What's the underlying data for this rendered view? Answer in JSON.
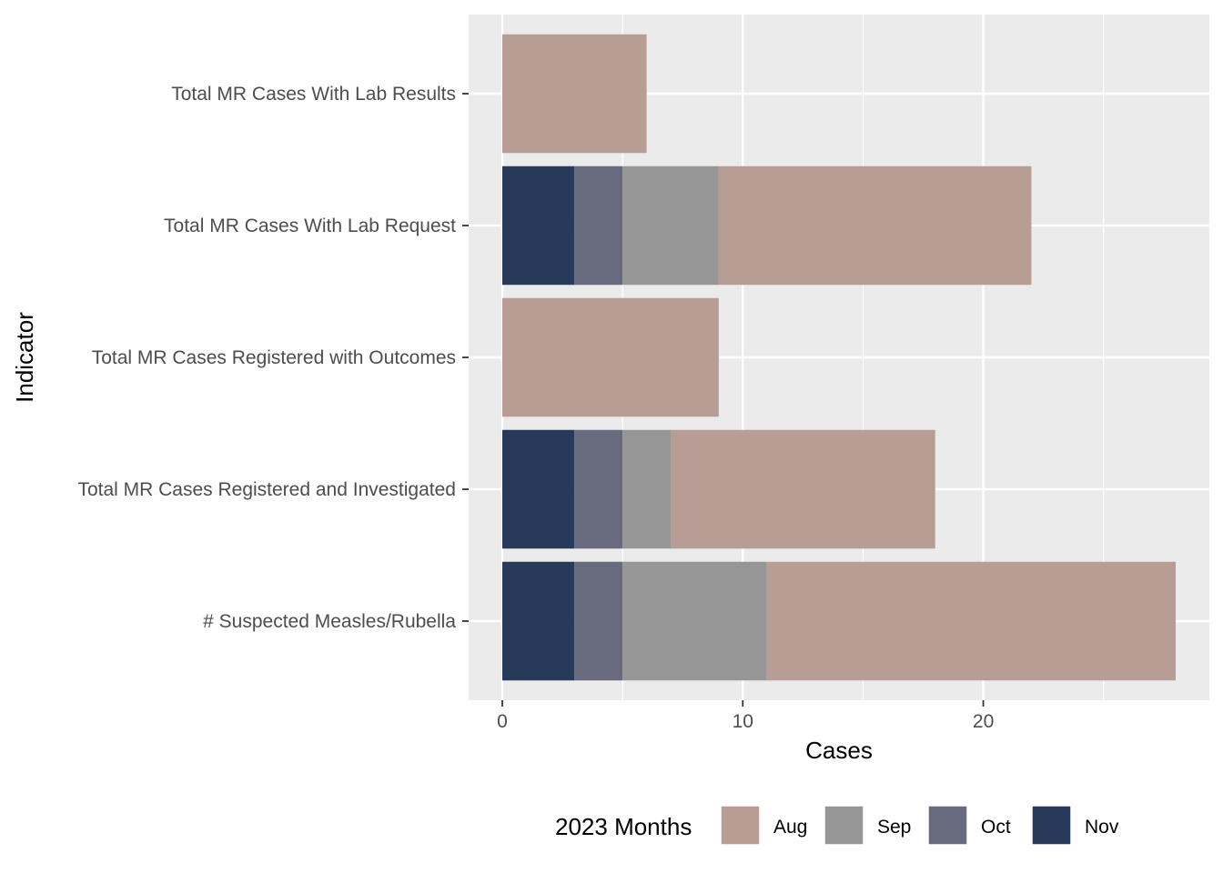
{
  "chart_data": {
    "type": "bar",
    "orientation": "horizontal",
    "stacked": true,
    "categories": [
      "# Suspected Measles/Rubella",
      "Total MR Cases Registered and Investigated",
      "Total MR Cases Registered with Outcomes",
      "Total MR Cases With Lab Request",
      "Total MR Cases With Lab Results"
    ],
    "series": [
      {
        "name": "Nov",
        "color": "#273a5a",
        "values": [
          3,
          3,
          0,
          3,
          0
        ]
      },
      {
        "name": "Oct",
        "color": "#686b7e",
        "values": [
          2,
          2,
          0,
          2,
          0
        ]
      },
      {
        "name": "Sep",
        "color": "#969696",
        "values": [
          6,
          2,
          0,
          4,
          0
        ]
      },
      {
        "name": "Aug",
        "color": "#b89d94",
        "values": [
          17,
          11,
          9,
          13,
          6
        ]
      }
    ],
    "xlabel": "Cases",
    "ylabel": "Indicator",
    "xlim": [
      -1.4,
      29.4
    ],
    "x_ticks": [
      0,
      10,
      20
    ],
    "grid": true,
    "legend": {
      "title": "2023 Months",
      "placement": "bottom",
      "order": [
        "Aug",
        "Sep",
        "Oct",
        "Nov"
      ]
    },
    "panel_background": "#ebebeb"
  }
}
